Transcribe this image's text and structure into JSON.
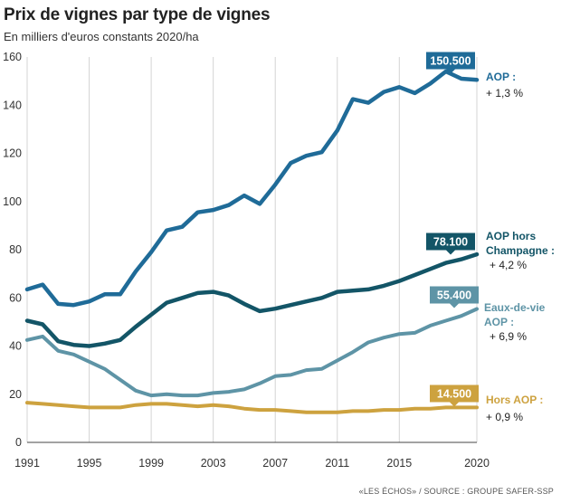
{
  "chart_data": {
    "type": "line",
    "title": "Prix de vignes par type de vignes",
    "subtitle": "En milliers d'euros constants 2020/ha",
    "source": "«LES ÉCHOS» / SOURCE : GROUPE SAFER-SSP",
    "x": [
      1991,
      1992,
      1993,
      1994,
      1995,
      1996,
      1997,
      1998,
      1999,
      2000,
      2001,
      2002,
      2003,
      2004,
      2005,
      2006,
      2007,
      2008,
      2009,
      2010,
      2011,
      2012,
      2013,
      2014,
      2015,
      2016,
      2017,
      2018,
      2019,
      2020
    ],
    "x_ticks": [
      "1991",
      "1995",
      "1999",
      "2003",
      "2007",
      "2011",
      "2015",
      "2020"
    ],
    "y_ticks": [
      "0",
      "20",
      "40",
      "60",
      "80",
      "100",
      "120",
      "140",
      "160"
    ],
    "ylim": [
      0,
      160
    ],
    "grid": "vertical",
    "series": [
      {
        "name": "AOP :",
        "change": "+ 1,3 %",
        "end_label": "150.500",
        "color": "#1f6b98",
        "values": [
          63.5,
          65.5,
          57.5,
          57,
          58.5,
          61.5,
          61.5,
          71,
          79,
          88,
          89.5,
          95.5,
          96.5,
          98.5,
          102.5,
          99,
          107,
          116,
          119,
          120.5,
          129.5,
          142.5,
          141,
          145.5,
          147.5,
          145,
          149,
          154,
          151,
          150.5
        ]
      },
      {
        "name": "AOP hors Champagne :",
        "change": "+ 4,2 %",
        "end_label": "78.100",
        "color": "#135567",
        "values": [
          50.5,
          49,
          42,
          40.5,
          40,
          41,
          42.5,
          48,
          53,
          58,
          60,
          62,
          62.5,
          61,
          57.5,
          54.5,
          55.5,
          57,
          58.5,
          60,
          62.5,
          63,
          63.5,
          65,
          67,
          69.5,
          72,
          74.5,
          76,
          78.1
        ]
      },
      {
        "name": "Eaux-de-vie AOP :",
        "change": "+ 6,9 %",
        "end_label": "55.400",
        "color": "#5e94a6",
        "values": [
          42.5,
          44,
          38,
          36.5,
          33.5,
          30.5,
          26,
          21.5,
          19.5,
          20,
          19.5,
          19.5,
          20.5,
          21,
          22,
          24.5,
          27.5,
          28,
          30,
          30.5,
          34,
          37.5,
          41.5,
          43.5,
          45,
          45.5,
          48.5,
          50.5,
          52.5,
          55.4
        ]
      },
      {
        "name": "Hors AOP :",
        "change": "+ 0,9 %",
        "end_label": "14.500",
        "color": "#cda23f",
        "values": [
          16.5,
          16,
          15.5,
          15,
          14.5,
          14.5,
          14.5,
          15.5,
          16,
          16,
          15.5,
          15,
          15.5,
          15,
          14,
          13.5,
          13.5,
          13,
          12.5,
          12.5,
          12.5,
          13,
          13,
          13.5,
          13.5,
          14,
          14,
          14.5,
          14.5,
          14.5
        ]
      }
    ]
  }
}
